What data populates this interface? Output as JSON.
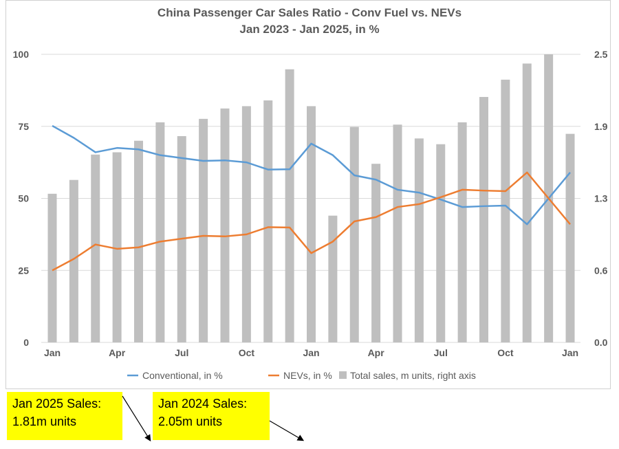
{
  "chart_data": {
    "type": "bar+line",
    "title": "China Passenger Car Sales Ratio - Conv Fuel vs. NEVs",
    "subtitle": "Jan 2023 - Jan 2025, in %",
    "x": [
      "Jan 2023",
      "Feb 2023",
      "Mar 2023",
      "Apr 2023",
      "May 2023",
      "Jun 2023",
      "Jul 2023",
      "Aug 2023",
      "Sep 2023",
      "Oct 2023",
      "Nov 2023",
      "Dec 2023",
      "Jan 2024",
      "Feb 2024",
      "Mar 2024",
      "Apr 2024",
      "May 2024",
      "Jun 2024",
      "Jul 2024",
      "Aug 2024",
      "Sep 2024",
      "Oct 2024",
      "Nov 2024",
      "Dec 2024",
      "Jan 2025"
    ],
    "x_tick_labels": [
      "Jan",
      "",
      "",
      "Apr",
      "",
      "",
      "Jul",
      "",
      "",
      "Oct",
      "",
      "",
      "Jan",
      "",
      "",
      "Apr",
      "",
      "",
      "Jul",
      "",
      "",
      "Oct",
      "",
      "",
      "Jan"
    ],
    "left_axis": {
      "ylim": [
        0,
        100
      ],
      "ticks": [
        "0",
        "25",
        "50",
        "75",
        "100"
      ]
    },
    "right_axis": {
      "ylim": [
        0,
        2.5
      ],
      "ticks": [
        "0.0",
        "0.6",
        "1.3",
        "1.9",
        "2.5"
      ]
    },
    "series": [
      {
        "name": "Conventional, in %",
        "type": "line",
        "axis": "left",
        "color": "#5b9bd5",
        "values": [
          75.2,
          71,
          66,
          67.5,
          67,
          65,
          64,
          63,
          63.2,
          62.5,
          60,
          60.1,
          69,
          65,
          58,
          56.5,
          53,
          52,
          49.6,
          47,
          47.3,
          47.5,
          41,
          50,
          59
        ]
      },
      {
        "name": "NEVs, in %",
        "type": "line",
        "axis": "left",
        "color": "#ed7d31",
        "values": [
          25,
          29,
          34,
          32.5,
          33,
          35,
          36,
          37,
          36.8,
          37.5,
          40,
          39.9,
          31,
          35,
          42,
          43.5,
          47,
          48,
          50.4,
          53,
          52.7,
          52.5,
          59,
          50,
          41
        ]
      },
      {
        "name": "Total sales, m units, right axis",
        "type": "bar",
        "axis": "right",
        "color": "#bfbfbf",
        "values": [
          1.29,
          1.41,
          1.63,
          1.65,
          1.75,
          1.91,
          1.79,
          1.94,
          2.03,
          2.05,
          2.1,
          2.37,
          2.05,
          1.1,
          1.87,
          1.55,
          1.89,
          1.77,
          1.72,
          1.91,
          2.13,
          2.28,
          2.42,
          2.5,
          1.81
        ]
      }
    ],
    "legend_position": "bottom",
    "grid": true
  },
  "notes": [
    {
      "line1": "Jan 2025 Sales:",
      "line2": "1.81m units"
    },
    {
      "line1": "Jan 2024 Sales:",
      "line2": "2.05m units"
    }
  ]
}
